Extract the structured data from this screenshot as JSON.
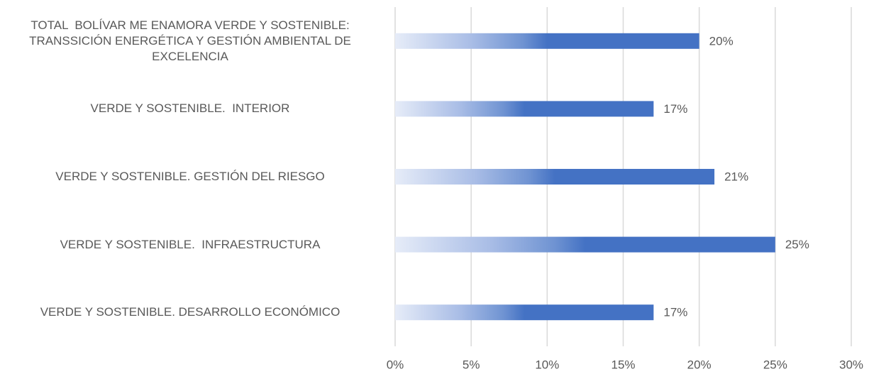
{
  "chart_data": {
    "type": "hbar",
    "categories": [
      "TOTAL  BOLÍVAR ME ENAMORA VERDE Y SOSTENIBLE: TRANSSICIÓN ENERGÉTICA Y GESTIÓN AMBIENTAL DE EXCELENCIA",
      "VERDE Y SOSTENIBLE.  INTERIOR",
      "VERDE Y SOSTENIBLE. GESTIÓN DEL RIESGO",
      "VERDE Y SOSTENIBLE.  INFRAESTRUCTURA",
      "VERDE Y SOSTENIBLE. DESARROLLO ECONÓMICO"
    ],
    "values": [
      20,
      17,
      21,
      25,
      17
    ],
    "value_labels": [
      "20%",
      "17%",
      "21%",
      "25%",
      "17%"
    ],
    "color": "#4472c4",
    "xlim": [
      0,
      30
    ],
    "xticks": [
      {
        "value": 0,
        "label": "0%"
      },
      {
        "value": 5,
        "label": "5%"
      },
      {
        "value": 10,
        "label": "10%"
      },
      {
        "value": 15,
        "label": "15%"
      },
      {
        "value": 20,
        "label": "20%"
      },
      {
        "value": 25,
        "label": "25%"
      },
      {
        "value": 30,
        "label": "30%"
      }
    ],
    "grid": true
  }
}
